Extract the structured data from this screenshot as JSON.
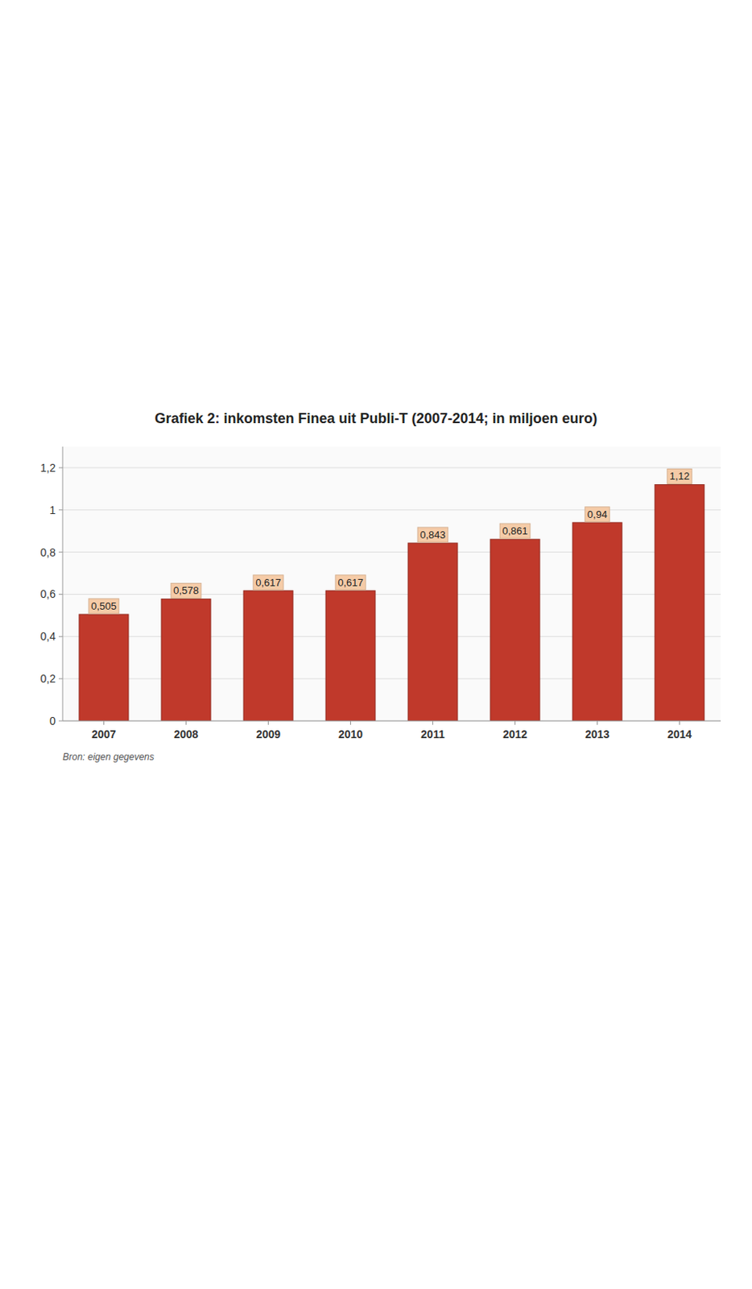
{
  "chart_data": {
    "type": "bar",
    "title": "Grafiek 2: inkomsten Finea uit Publi-T (2007-2014; in miljoen euro)",
    "categories": [
      "2007",
      "2008",
      "2009",
      "2010",
      "2011",
      "2012",
      "2013",
      "2014"
    ],
    "values": [
      0.505,
      0.578,
      0.617,
      0.617,
      0.843,
      0.861,
      0.94,
      1.12
    ],
    "value_labels": [
      "0,505",
      "0,578",
      "0,617",
      "0,617",
      "0,843",
      "0,861",
      "0,94",
      "1,12"
    ],
    "data_labels": true,
    "color": "#c0392b",
    "ylim": [
      0,
      1.3
    ],
    "yticks": [
      0,
      {
        "value": 0.2,
        "label": "0,2"
      },
      {
        "value": 0.4,
        "label": "0,4"
      },
      {
        "value": 0.6,
        "label": "0,6"
      },
      {
        "value": 0.8,
        "label": "0,8"
      },
      1,
      {
        "value": 1.2,
        "label": "1,2"
      }
    ],
    "grid": true,
    "annotations": [
      "Bron: eigen gegevens"
    ]
  }
}
